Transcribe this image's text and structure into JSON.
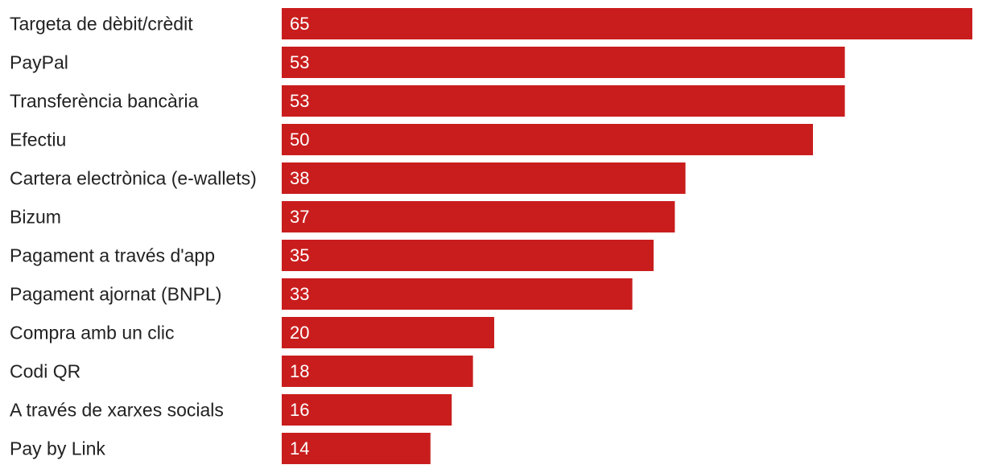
{
  "colors": {
    "bar": "#c91d1d",
    "label_text": "#222222",
    "value_text": "#ffffff",
    "background": "#ffffff"
  },
  "chart_data": {
    "type": "bar",
    "orientation": "horizontal",
    "categories": [
      "Targeta de dèbit/crèdit",
      "PayPal",
      "Transferència bancària",
      "Efectiu",
      "Cartera electrònica (e-wallets)",
      "Bizum",
      "Pagament a través d'app",
      "Pagament ajornat (BNPL)",
      "Compra amb un clic",
      "Codi QR",
      "A través de xarxes socials",
      "Pay by Link"
    ],
    "values": [
      65,
      53,
      53,
      50,
      38,
      37,
      35,
      33,
      20,
      18,
      16,
      14
    ],
    "data_labels": [
      "65",
      "53",
      "53",
      "50",
      "38",
      "37",
      "35",
      "33",
      "20",
      "18",
      "16",
      "14"
    ],
    "xlim": [
      0,
      65
    ],
    "grid": false,
    "legend": "none"
  }
}
